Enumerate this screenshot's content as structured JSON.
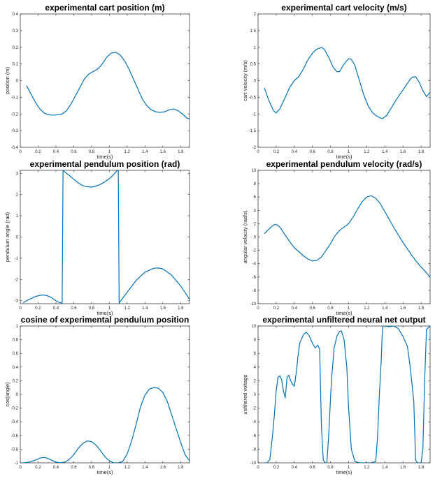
{
  "colors": {
    "line": "#0072bd",
    "axis": "#262626"
  },
  "chart_data": [
    {
      "type": "line",
      "title": "experimental cart position (m)",
      "xlabel": "time(s)",
      "ylabel": "position (m)",
      "xlim": [
        0,
        1.9
      ],
      "ylim": [
        -0.4,
        0.4
      ],
      "xticks": [
        "0",
        "0.2",
        "0.4",
        "0.6",
        "0.8",
        "1",
        "1.2",
        "1.4",
        "1.6",
        "1.8"
      ],
      "yticks": [
        "-0.4",
        "-0.3",
        "-0.2",
        "-0.1",
        "0",
        "0.1",
        "0.2",
        "0.3",
        "0.4"
      ],
      "series": [
        {
          "x": [
            0.07,
            0.12,
            0.17,
            0.22,
            0.27,
            0.32,
            0.37,
            0.42,
            0.47,
            0.52,
            0.57,
            0.62,
            0.67,
            0.72,
            0.77,
            0.82,
            0.87,
            0.92,
            0.97,
            1.02,
            1.07,
            1.12,
            1.17,
            1.22,
            1.27,
            1.32,
            1.37,
            1.42,
            1.47,
            1.52,
            1.57,
            1.62,
            1.67,
            1.72,
            1.77,
            1.82,
            1.87,
            1.9
          ],
          "y": [
            -0.03,
            -0.08,
            -0.13,
            -0.17,
            -0.195,
            -0.205,
            -0.207,
            -0.205,
            -0.2,
            -0.18,
            -0.14,
            -0.09,
            -0.04,
            0.01,
            0.04,
            0.055,
            0.07,
            0.1,
            0.14,
            0.165,
            0.17,
            0.155,
            0.12,
            0.07,
            0.01,
            -0.05,
            -0.11,
            -0.15,
            -0.175,
            -0.187,
            -0.19,
            -0.187,
            -0.175,
            -0.17,
            -0.18,
            -0.2,
            -0.225,
            -0.23
          ]
        }
      ]
    },
    {
      "type": "line",
      "title": "experimental cart velocity (m/s)",
      "xlabel": "time(s)",
      "ylabel": "cart velocity (m/s)",
      "xlim": [
        0,
        1.9
      ],
      "ylim": [
        -2,
        2
      ],
      "xticks": [
        "0",
        "0.2",
        "0.4",
        "0.6",
        "0.8",
        "1",
        "1.2",
        "1.4",
        "1.6",
        "1.8"
      ],
      "yticks": [
        "-2",
        "-1.5",
        "-1",
        "-0.5",
        "0",
        "0.5",
        "1",
        "1.5",
        "2"
      ],
      "series": [
        {
          "x": [
            0.07,
            0.12,
            0.17,
            0.2,
            0.24,
            0.3,
            0.35,
            0.4,
            0.45,
            0.5,
            0.55,
            0.6,
            0.65,
            0.7,
            0.73,
            0.78,
            0.83,
            0.87,
            0.9,
            0.95,
            1.0,
            1.03,
            1.07,
            1.12,
            1.17,
            1.22,
            1.27,
            1.32,
            1.37,
            1.42,
            1.47,
            1.52,
            1.57,
            1.62,
            1.67,
            1.7,
            1.74,
            1.78,
            1.82,
            1.86,
            1.9
          ],
          "y": [
            -0.22,
            -0.6,
            -0.9,
            -0.97,
            -0.85,
            -0.5,
            -0.2,
            0.0,
            0.12,
            0.35,
            0.62,
            0.82,
            0.95,
            0.99,
            0.95,
            0.7,
            0.4,
            0.27,
            0.27,
            0.5,
            0.66,
            0.64,
            0.45,
            0.0,
            -0.45,
            -0.78,
            -0.98,
            -1.08,
            -1.14,
            -1.05,
            -0.82,
            -0.6,
            -0.4,
            -0.2,
            0.0,
            0.1,
            0.12,
            -0.05,
            -0.3,
            -0.48,
            -0.35
          ]
        }
      ]
    },
    {
      "type": "line",
      "title": "experimental pendulum position (rad)",
      "xlabel": "time(s)",
      "ylabel": "pendulum angle (rad)",
      "xlim": [
        0,
        1.9
      ],
      "ylim": [
        -3.14,
        3.14
      ],
      "xticks": [
        "0",
        "0.2",
        "0.4",
        "0.6",
        "0.8",
        "1",
        "1.2",
        "1.4",
        "1.6",
        "1.8"
      ],
      "yticks": [
        "-3",
        "-2",
        "-1",
        "0",
        "1",
        "2",
        "3"
      ],
      "series": [
        {
          "x": [
            0.03,
            0.07,
            0.12,
            0.17,
            0.22,
            0.26,
            0.3,
            0.35,
            0.4,
            0.44,
            0.47,
            0.48,
            0.49,
            0.55,
            0.6,
            0.65,
            0.7,
            0.75,
            0.8,
            0.85,
            0.9,
            0.95,
            1.0,
            1.05,
            1.08,
            1.1,
            1.11,
            1.12,
            1.2,
            1.3,
            1.4,
            1.5,
            1.55,
            1.6,
            1.7,
            1.8,
            1.88,
            1.9
          ],
          "y": [
            -3.1,
            -3.0,
            -2.9,
            -2.8,
            -2.75,
            -2.73,
            -2.76,
            -2.85,
            -3.0,
            -3.08,
            -3.12,
            3.14,
            3.1,
            2.9,
            2.72,
            2.55,
            2.42,
            2.37,
            2.35,
            2.4,
            2.48,
            2.6,
            2.75,
            2.95,
            3.1,
            3.14,
            -3.12,
            -3.05,
            -2.6,
            -2.05,
            -1.65,
            -1.47,
            -1.46,
            -1.5,
            -1.8,
            -2.3,
            -2.8,
            -2.95
          ]
        }
      ]
    },
    {
      "type": "line",
      "title": "experimental pendulum velocity (rad/s)",
      "xlabel": "time(s)",
      "ylabel": "angular velocity (rad/s)",
      "xlim": [
        0,
        1.9
      ],
      "ylim": [
        -10,
        10
      ],
      "xticks": [
        "0",
        "0.2",
        "0.4",
        "0.6",
        "0.8",
        "1",
        "1.2",
        "1.4",
        "1.6",
        "1.8"
      ],
      "yticks": [
        "-10",
        "-8",
        "-6",
        "-4",
        "-2",
        "0",
        "2",
        "4",
        "6",
        "8",
        "10"
      ],
      "series": [
        {
          "x": [
            0.07,
            0.12,
            0.17,
            0.2,
            0.24,
            0.3,
            0.35,
            0.4,
            0.45,
            0.5,
            0.55,
            0.6,
            0.65,
            0.7,
            0.75,
            0.8,
            0.85,
            0.9,
            0.95,
            1.0,
            1.05,
            1.1,
            1.15,
            1.2,
            1.25,
            1.3,
            1.35,
            1.4,
            1.45,
            1.5,
            1.55,
            1.6,
            1.65,
            1.7,
            1.75,
            1.8,
            1.85,
            1.9
          ],
          "y": [
            0.5,
            1.2,
            1.8,
            1.9,
            1.5,
            0.3,
            -0.7,
            -1.6,
            -2.2,
            -2.8,
            -3.3,
            -3.6,
            -3.5,
            -3.0,
            -2.0,
            -1.0,
            0.2,
            1.0,
            1.5,
            2.0,
            3.0,
            4.2,
            5.3,
            6.0,
            6.2,
            5.8,
            5.0,
            3.8,
            2.6,
            1.4,
            0.3,
            -0.8,
            -1.8,
            -2.8,
            -3.7,
            -4.5,
            -5.2,
            -6.0
          ]
        }
      ]
    },
    {
      "type": "line",
      "title": "cosine of experimental pendulum position",
      "xlabel": "time(s)",
      "ylabel": "cos(angle)",
      "xlim": [
        0,
        1.9
      ],
      "ylim": [
        -1,
        1
      ],
      "xticks": [
        "0",
        "0.2",
        "0.4",
        "0.6",
        "0.8",
        "1",
        "1.2",
        "1.4",
        "1.6",
        "1.8"
      ],
      "yticks": [
        "-1",
        "-0.8",
        "-0.6",
        "-0.4",
        "-0.2",
        "0",
        "0.2",
        "0.4",
        "0.6",
        "0.8",
        "1"
      ],
      "series": [
        {
          "x": [
            0.03,
            0.1,
            0.17,
            0.22,
            0.26,
            0.3,
            0.35,
            0.4,
            0.45,
            0.5,
            0.55,
            0.6,
            0.65,
            0.7,
            0.75,
            0.8,
            0.85,
            0.9,
            0.95,
            1.0,
            1.05,
            1.1,
            1.15,
            1.2,
            1.25,
            1.3,
            1.35,
            1.4,
            1.45,
            1.5,
            1.55,
            1.6,
            1.65,
            1.7,
            1.75,
            1.8,
            1.85,
            1.9
          ],
          "y": [
            -1.0,
            -0.99,
            -0.96,
            -0.93,
            -0.92,
            -0.93,
            -0.96,
            -0.99,
            -1.0,
            -0.99,
            -0.95,
            -0.88,
            -0.79,
            -0.72,
            -0.68,
            -0.69,
            -0.74,
            -0.82,
            -0.91,
            -0.97,
            -1.0,
            -1.0,
            -0.98,
            -0.87,
            -0.68,
            -0.44,
            -0.18,
            -0.01,
            0.08,
            0.1,
            0.09,
            0.03,
            -0.1,
            -0.3,
            -0.5,
            -0.7,
            -0.88,
            -0.97
          ]
        }
      ]
    },
    {
      "type": "line",
      "title": "experimental unfiltered neural net output",
      "xlabel": "time(s)",
      "ylabel": "unfiltered voltage",
      "xlim": [
        0,
        1.9
      ],
      "ylim": [
        -10,
        10
      ],
      "xticks": [
        "0",
        "0.2",
        "0.4",
        "0.6",
        "0.8",
        "1",
        "1.2",
        "1.4",
        "1.6",
        "1.8"
      ],
      "yticks": [
        "-10",
        "-8",
        "-6",
        "-4",
        "-2",
        "0",
        "2",
        "4",
        "6",
        "8",
        "10"
      ],
      "series": [
        {
          "x": [
            0.07,
            0.1,
            0.13,
            0.16,
            0.18,
            0.2,
            0.22,
            0.24,
            0.26,
            0.28,
            0.3,
            0.32,
            0.34,
            0.36,
            0.38,
            0.4,
            0.42,
            0.44,
            0.46,
            0.5,
            0.53,
            0.56,
            0.6,
            0.63,
            0.66,
            0.68,
            0.7,
            0.72,
            0.74,
            0.76,
            0.78,
            0.81,
            0.84,
            0.87,
            0.9,
            0.92,
            0.95,
            0.98,
            1.0,
            1.03,
            1.07,
            1.12,
            1.2,
            1.25,
            1.3,
            1.32,
            1.34,
            1.36,
            1.37,
            1.38,
            1.4,
            1.45,
            1.5,
            1.55,
            1.6,
            1.65,
            1.68,
            1.72,
            1.74,
            1.76,
            1.78,
            1.8,
            1.82,
            1.84,
            1.86,
            1.9
          ],
          "y": [
            -10,
            -10,
            -9.5,
            -6,
            -3,
            0.5,
            2.5,
            2.7,
            2.2,
            0.5,
            -0.5,
            2.5,
            2.8,
            2.0,
            1.5,
            1.2,
            3.0,
            5.5,
            7.5,
            8.7,
            9.1,
            8.7,
            7.5,
            6.8,
            7.2,
            6.6,
            -4.8,
            -9.6,
            -10,
            -10,
            -6,
            2,
            6.8,
            8.5,
            9.2,
            9.3,
            8.0,
            4.0,
            -2.0,
            -8.0,
            -9.8,
            -10,
            -10,
            -10,
            -9.8,
            -6,
            0,
            5,
            8.5,
            10,
            10,
            9.9,
            10,
            9.6,
            8.5,
            7,
            4,
            -1,
            -9.6,
            -10,
            -10,
            -10,
            -8,
            2,
            9.5,
            10
          ]
        }
      ]
    }
  ]
}
